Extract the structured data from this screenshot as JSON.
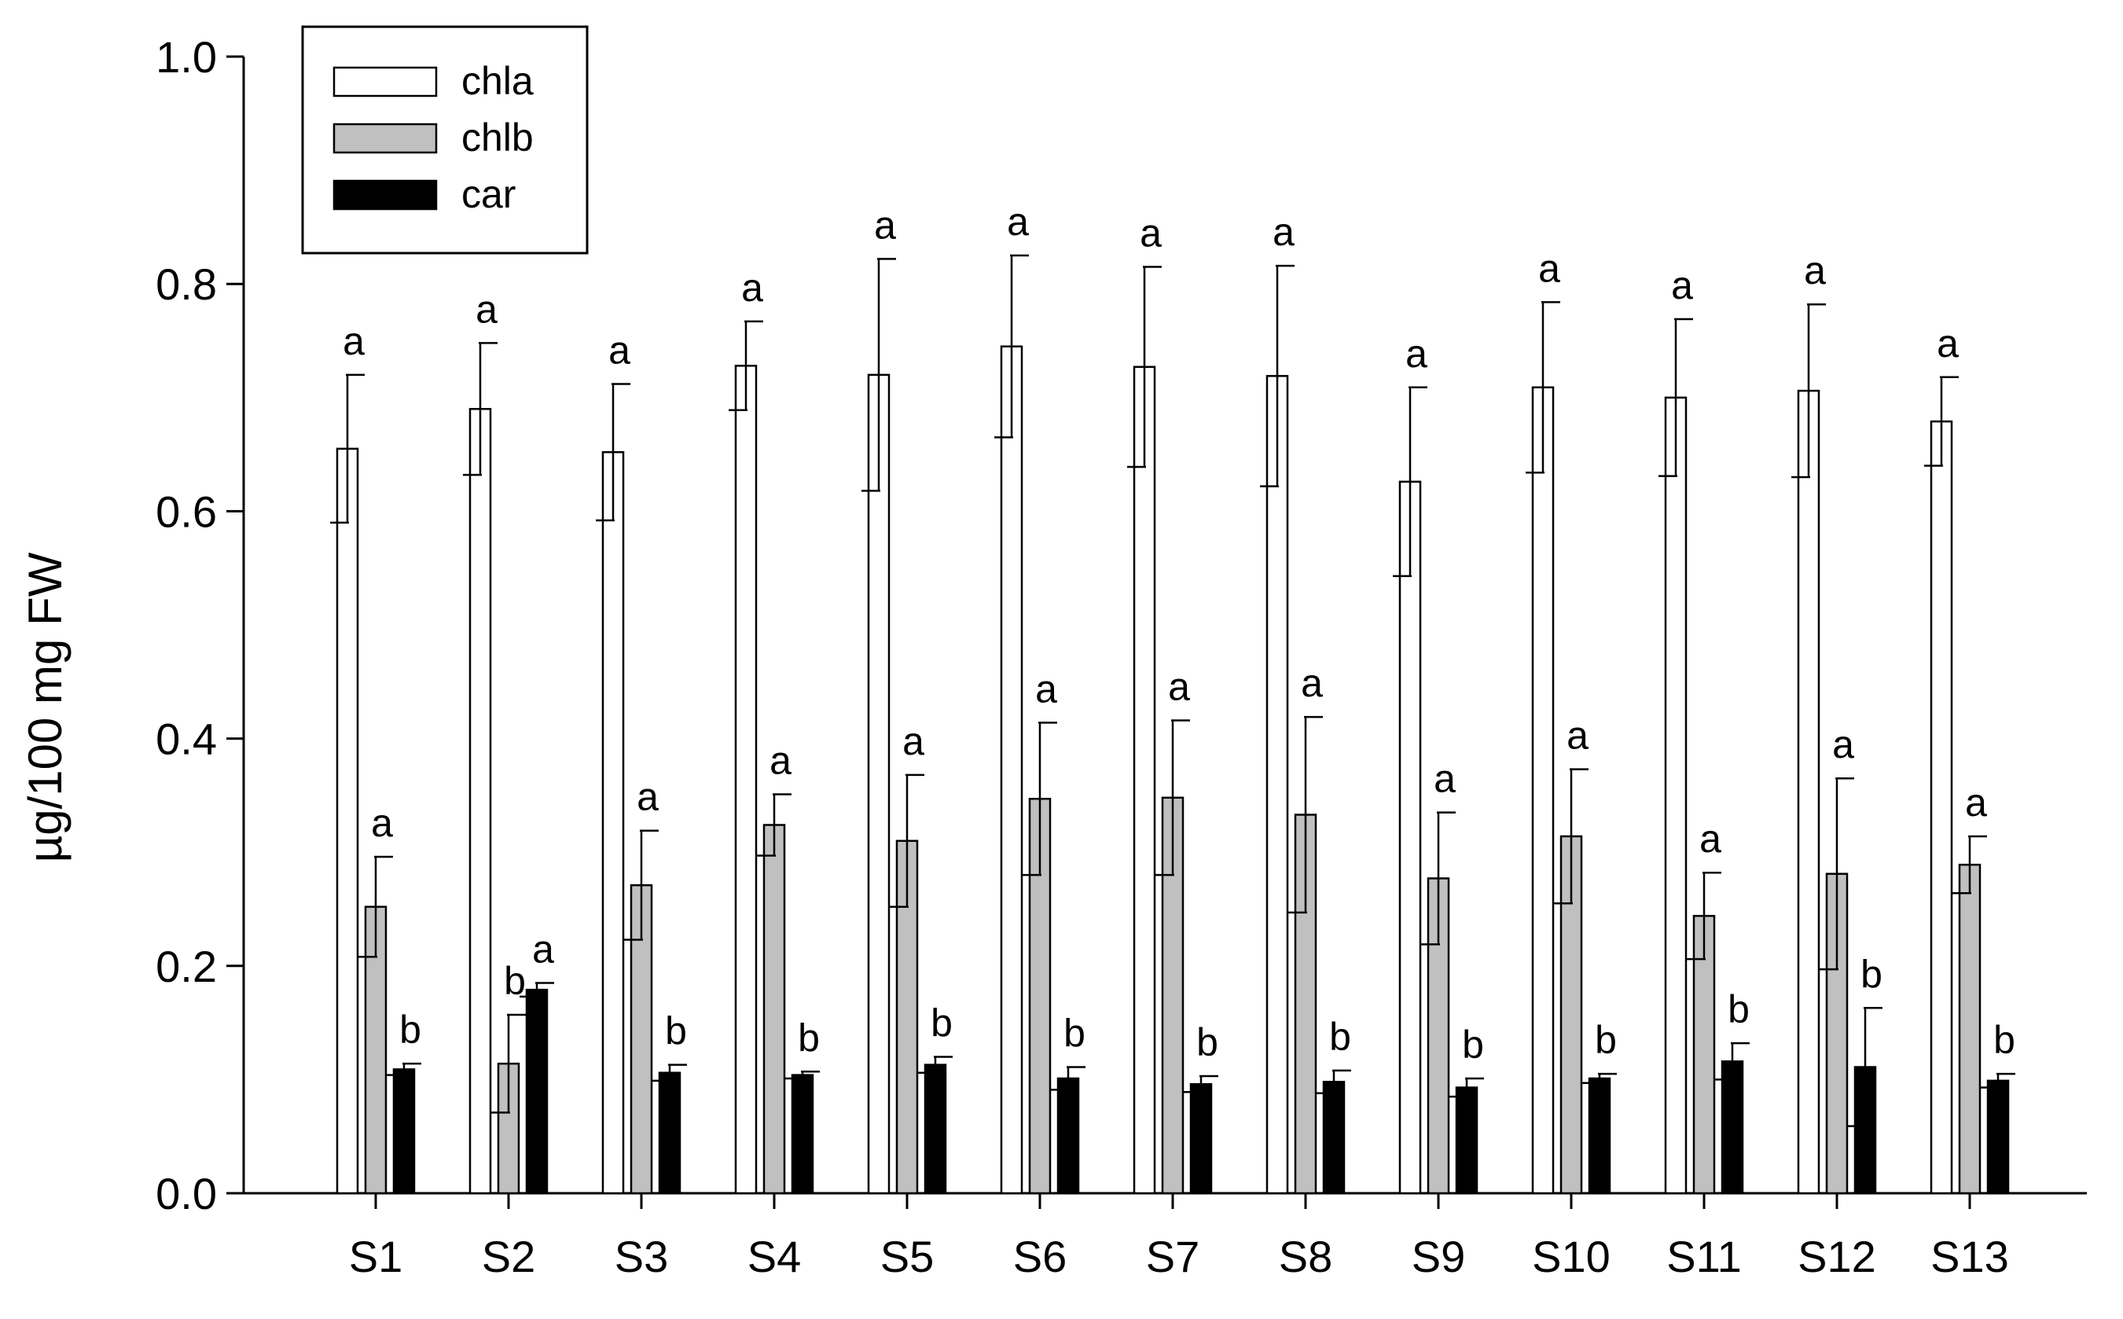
{
  "chart_data": {
    "type": "bar",
    "title": "",
    "xlabel": "",
    "ylabel": "µg/100 mg FW",
    "ylim": [
      0,
      1.0
    ],
    "yticks": [
      "0.0",
      "0.2",
      "0.4",
      "0.6",
      "0.8",
      "1.0"
    ],
    "grid": false,
    "legend_position": "top-left",
    "categories": [
      "S1",
      "S2",
      "S3",
      "S4",
      "S5",
      "S6",
      "S7",
      "S8",
      "S9",
      "S10",
      "S11",
      "S12",
      "S13"
    ],
    "series": [
      {
        "name": "chla",
        "color": "#ffffff",
        "values": [
          0.655,
          0.69,
          0.652,
          0.728,
          0.72,
          0.745,
          0.727,
          0.719,
          0.626,
          0.709,
          0.7,
          0.706,
          0.679
        ],
        "errors": [
          0.065,
          0.058,
          0.06,
          0.039,
          0.102,
          0.08,
          0.088,
          0.097,
          0.083,
          0.075,
          0.069,
          0.076,
          0.039
        ],
        "significance": [
          "a",
          "a",
          "a",
          "a",
          "a",
          "a",
          "a",
          "a",
          "a",
          "a",
          "a",
          "a",
          "a"
        ]
      },
      {
        "name": "chlb",
        "color": "#c0c0c0",
        "values": [
          0.252,
          0.114,
          0.271,
          0.324,
          0.31,
          0.347,
          0.348,
          0.333,
          0.277,
          0.314,
          0.244,
          0.281,
          0.289
        ],
        "errors": [
          0.044,
          0.043,
          0.048,
          0.027,
          0.058,
          0.067,
          0.068,
          0.086,
          0.058,
          0.059,
          0.038,
          0.084,
          0.025
        ],
        "significance": [
          "a",
          "b",
          "a",
          "a",
          "a",
          "a",
          "a",
          "a",
          "a",
          "a",
          "a",
          "a",
          "a"
        ]
      },
      {
        "name": "car",
        "color": "#000000",
        "values": [
          0.109,
          0.179,
          0.106,
          0.104,
          0.113,
          0.101,
          0.096,
          0.098,
          0.093,
          0.101,
          0.116,
          0.111,
          0.099
        ],
        "errors": [
          0.005,
          0.006,
          0.007,
          0.003,
          0.007,
          0.01,
          0.007,
          0.01,
          0.008,
          0.004,
          0.016,
          0.052,
          0.006
        ],
        "significance": [
          "b",
          "a",
          "b",
          "b",
          "b",
          "b",
          "b",
          "b",
          "b",
          "b",
          "b",
          "b",
          "b"
        ]
      }
    ]
  }
}
